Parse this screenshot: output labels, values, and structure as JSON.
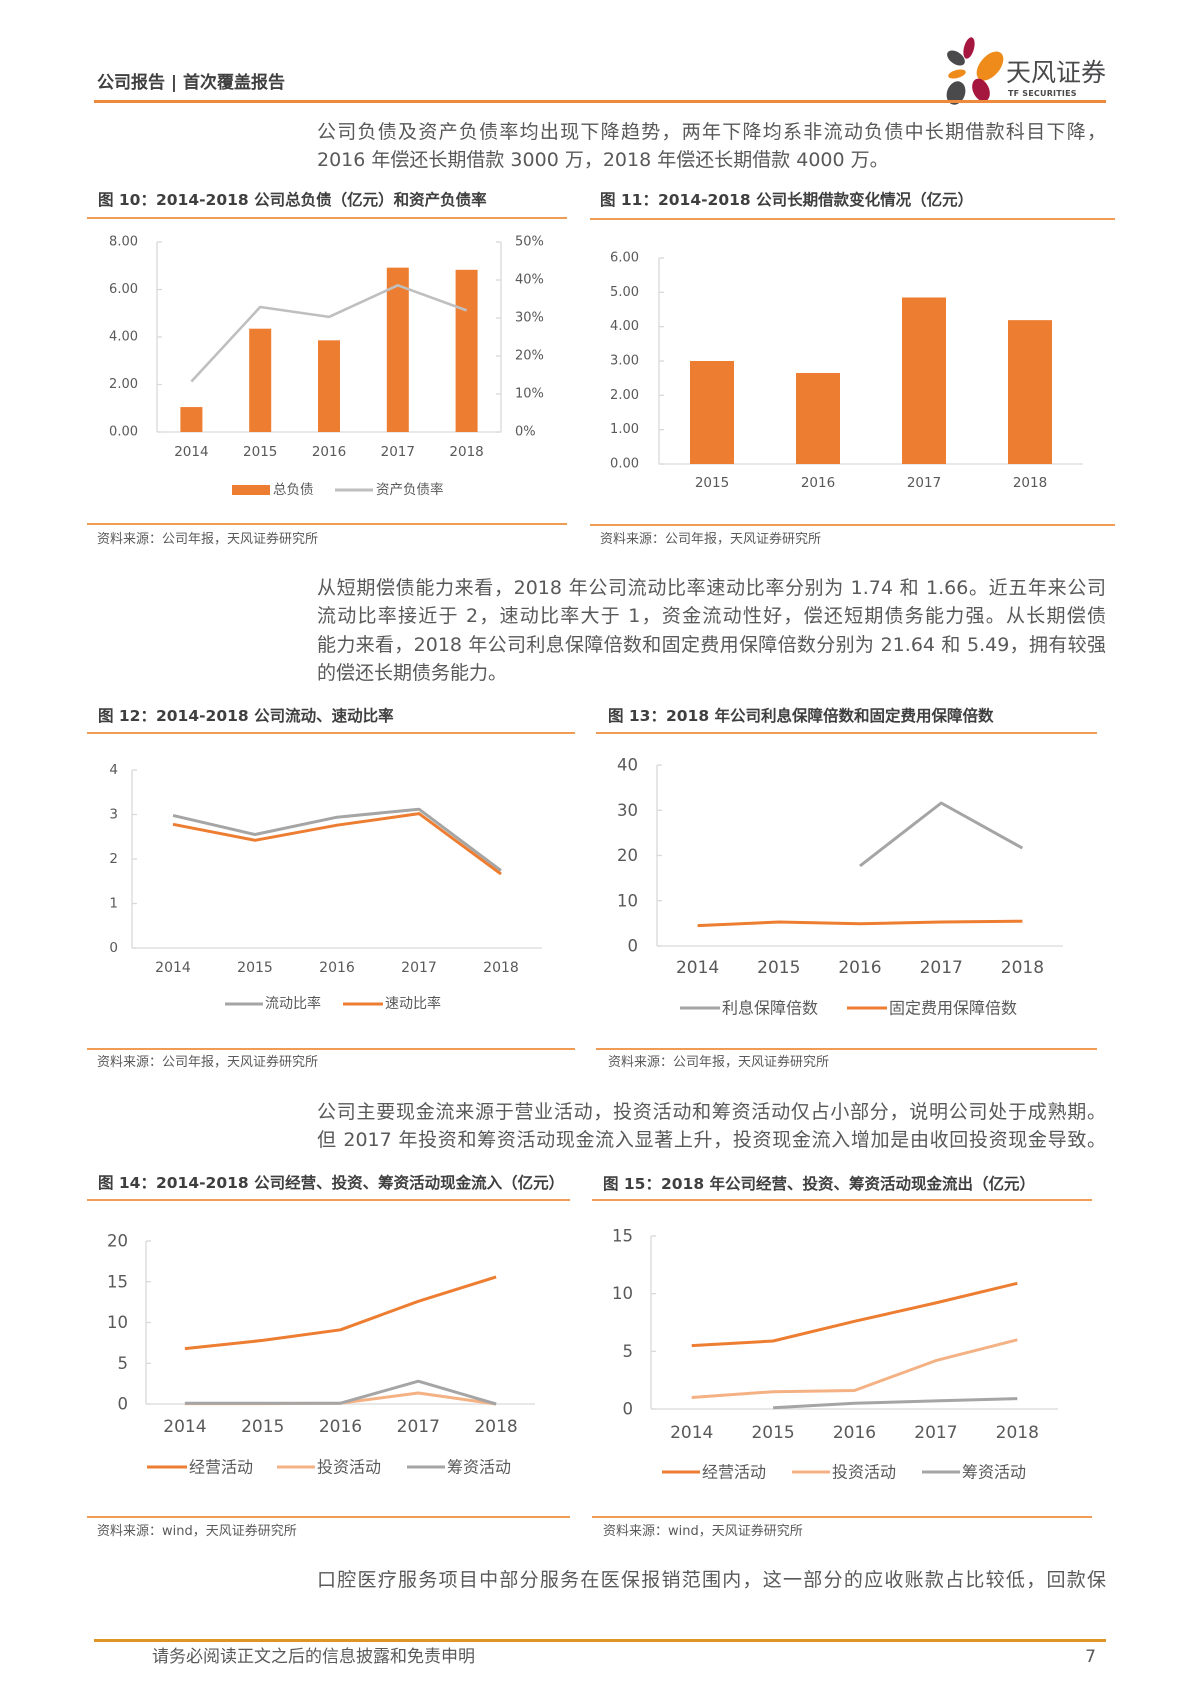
{
  "header": {
    "title": "公司报告 | 首次覆盖报告",
    "logo": {
      "name_cn": "天风证券",
      "name_en": "TF SECURITIES"
    }
  },
  "paragraphs": [
    {
      "lines": [
        "公司负债及资产负债率均出现下降趋势，两年下降均系非流动负债中长期借款科目下降，",
        "2016 年偿还长期借款 3000 万，2018 年偿还长期借款 4000 万。"
      ]
    },
    {
      "lines": [
        "从短期偿债能力来看，2018 年公司流动比率速动比率分别为 1.74 和 1.66。近五年来公司",
        "流动比率接近于 2，速动比率大于 1，资金流动性好，偿还短期债务能力强。从长期偿债",
        "能力来看，2018 年公司利息保障倍数和固定费用保障倍数分别为 21.64 和 5.49，拥有较强",
        "的偿还长期债务能力。"
      ]
    },
    {
      "lines": [
        "公司主要现金流来源于营业活动，投资活动和筹资活动仅占小部分，说明公司处于成熟期。",
        "但 2017 年投资和筹资活动现金流入显著上升，投资现金流入增加是由收回投资现金导致。"
      ]
    },
    {
      "lines": [
        "口腔医疗服务项目中部分服务在医保报销范围内，这一部分的应收账款占比较低，回款保"
      ]
    }
  ],
  "chart_data": [
    {
      "id": "fig10",
      "type": "bar+line",
      "title": "图 10：2014-2018 公司总负债（亿元）和资产负债率",
      "xlabel": "",
      "ylabel": "",
      "categories": [
        "2014",
        "2015",
        "2016",
        "2017",
        "2018"
      ],
      "series": [
        {
          "name": "总负债",
          "type": "bar",
          "axis": "left",
          "color": "#ED7D31",
          "unit": "亿元",
          "values": [
            1.05,
            4.35,
            3.86,
            6.92,
            6.83
          ]
        },
        {
          "name": "资产负债率",
          "type": "line",
          "axis": "right",
          "color": "#BFBFBF",
          "unit": "%",
          "values": [
            13.3,
            32.9,
            30.3,
            38.6,
            32.0
          ]
        }
      ],
      "y_left": {
        "min": 0,
        "max": 8,
        "ticks": [
          "0.00",
          "2.00",
          "4.00",
          "6.00",
          "8.00"
        ]
      },
      "y_right": {
        "min": 0,
        "max": 50,
        "ticks": [
          "0%",
          "10%",
          "20%",
          "30%",
          "40%",
          "50%"
        ]
      },
      "grid": false,
      "legend_position": "bottom",
      "source": "资料来源：公司年报，天风证券研究所"
    },
    {
      "id": "fig11",
      "type": "bar",
      "title": "图 11：2014-2018 公司长期借款变化情况（亿元）",
      "xlabel": "",
      "ylabel": "",
      "categories": [
        "2015",
        "2016",
        "2017",
        "2018"
      ],
      "series": [
        {
          "name": "长期借款",
          "type": "bar",
          "axis": "left",
          "color": "#ED7D31",
          "unit": "亿元",
          "values": [
            3.0,
            2.65,
            4.85,
            4.19
          ]
        }
      ],
      "y_left": {
        "min": 0,
        "max": 6,
        "ticks": [
          "0.00",
          "1.00",
          "2.00",
          "3.00",
          "4.00",
          "5.00",
          "6.00"
        ]
      },
      "grid": false,
      "legend_position": "none",
      "source": "资料来源：公司年报，天风证券研究所"
    },
    {
      "id": "fig12",
      "type": "line",
      "title": "图 12：2014-2018 公司流动、速动比率",
      "xlabel": "",
      "ylabel": "",
      "categories": [
        "2014",
        "2015",
        "2016",
        "2017",
        "2018"
      ],
      "series": [
        {
          "name": "流动比率",
          "type": "line",
          "axis": "left",
          "color": "#A5A5A5",
          "values": [
            2.98,
            2.55,
            2.94,
            3.12,
            1.74
          ]
        },
        {
          "name": "速动比率",
          "type": "line",
          "axis": "left",
          "color": "#ED7D31",
          "values": [
            2.78,
            2.42,
            2.76,
            3.02,
            1.66
          ]
        }
      ],
      "y_left": {
        "min": 0,
        "max": 4,
        "ticks": [
          "0",
          "1",
          "2",
          "3",
          "4"
        ]
      },
      "grid": false,
      "legend_position": "bottom",
      "source": "资料来源：公司年报，天风证券研究所"
    },
    {
      "id": "fig13",
      "type": "line",
      "title": "图 13：2018 年公司利息保障倍数和固定费用保障倍数",
      "xlabel": "",
      "ylabel": "",
      "categories": [
        "2014",
        "2015",
        "2016",
        "2017",
        "2018"
      ],
      "series": [
        {
          "name": "利息保障倍数",
          "type": "line",
          "axis": "left",
          "color": "#A5A5A5",
          "values": [
            null,
            null,
            17.7,
            31.6,
            21.64
          ]
        },
        {
          "name": "固定费用保障倍数",
          "type": "line",
          "axis": "left",
          "color": "#ED7D31",
          "values": [
            4.5,
            5.3,
            4.9,
            5.3,
            5.49
          ]
        }
      ],
      "y_left": {
        "min": 0,
        "max": 40,
        "ticks": [
          "0",
          "10",
          "20",
          "30",
          "40"
        ]
      },
      "grid": false,
      "legend_position": "bottom",
      "source": "资料来源：公司年报，天风证券研究所"
    },
    {
      "id": "fig14",
      "type": "line",
      "title": "图 14：2014-2018 公司经营、投资、筹资活动现金流入（亿元）",
      "xlabel": "",
      "ylabel": "",
      "categories": [
        "2014",
        "2015",
        "2016",
        "2017",
        "2018"
      ],
      "series": [
        {
          "name": "经营活动",
          "type": "line",
          "axis": "left",
          "color": "#ED7D31",
          "values": [
            6.8,
            7.8,
            9.1,
            12.6,
            15.6
          ]
        },
        {
          "name": "投资活动",
          "type": "line",
          "axis": "left",
          "color": "#F4B183",
          "values": [
            0.05,
            0.05,
            0.1,
            1.35,
            0.0
          ]
        },
        {
          "name": "筹资活动",
          "type": "line",
          "axis": "left",
          "color": "#A5A5A5",
          "values": [
            0.1,
            0.1,
            0.1,
            2.8,
            0.0
          ]
        }
      ],
      "y_left": {
        "min": 0,
        "max": 20,
        "ticks": [
          "0",
          "5",
          "10",
          "15",
          "20"
        ]
      },
      "grid": false,
      "legend_position": "bottom",
      "source": "资料来源：wind，天风证券研究所"
    },
    {
      "id": "fig15",
      "type": "line",
      "title": "图 15：2018 年公司经营、投资、筹资活动现金流出（亿元）",
      "xlabel": "",
      "ylabel": "",
      "categories": [
        "2014",
        "2015",
        "2016",
        "2017",
        "2018"
      ],
      "series": [
        {
          "name": "经营活动",
          "type": "line",
          "axis": "left",
          "color": "#ED7D31",
          "values": [
            5.5,
            5.9,
            7.6,
            9.2,
            10.9
          ]
        },
        {
          "name": "投资活动",
          "type": "line",
          "axis": "left",
          "color": "#F4B183",
          "values": [
            1.0,
            1.5,
            1.6,
            4.2,
            6.0
          ]
        },
        {
          "name": "筹资活动",
          "type": "line",
          "axis": "left",
          "color": "#A5A5A5",
          "values": [
            null,
            0.1,
            0.5,
            0.7,
            0.9
          ]
        }
      ],
      "y_left": {
        "min": 0,
        "max": 15,
        "ticks": [
          "0",
          "5",
          "10",
          "15"
        ]
      },
      "grid": false,
      "legend_position": "bottom",
      "source": "资料来源：wind，天风证券研究所"
    }
  ],
  "footer": {
    "disclaimer": "请务必阅读正文之后的信息披露和免责申明",
    "page_number": "7"
  },
  "colors": {
    "accent_orange": "#ED7D31",
    "light_orange": "#F4B183",
    "gray_series": "#A5A5A5",
    "header_rule": "#EE8A3C",
    "footer_rule": "#DE9524",
    "body_text": "#595959"
  }
}
